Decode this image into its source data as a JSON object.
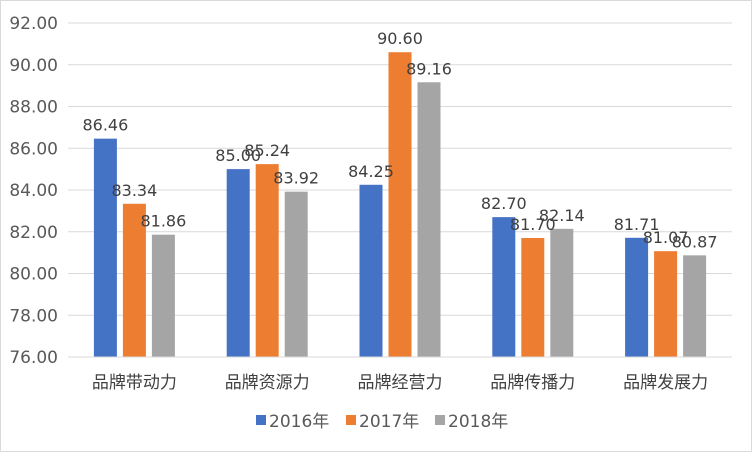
{
  "chart_data": {
    "type": "bar",
    "categories": [
      "品牌带动力",
      "品牌资源力",
      "品牌经营力",
      "品牌传播力",
      "品牌发展力"
    ],
    "series": [
      {
        "name": "2016年",
        "color": "#4472C4",
        "values": [
          86.46,
          85.0,
          84.25,
          82.7,
          81.71
        ]
      },
      {
        "name": "2017年",
        "color": "#ED7D31",
        "values": [
          83.34,
          85.24,
          90.6,
          81.7,
          81.07
        ]
      },
      {
        "name": "2018年",
        "color": "#A5A5A5",
        "values": [
          81.86,
          83.92,
          89.16,
          82.14,
          80.87
        ]
      }
    ],
    "ylim": [
      76,
      92
    ],
    "yticks": [
      "76.00",
      "78.00",
      "80.00",
      "82.00",
      "84.00",
      "86.00",
      "88.00",
      "90.00",
      "92.00"
    ],
    "grid": true,
    "legend": "bottom",
    "data_labels": true,
    "title": "",
    "xlabel": "",
    "ylabel": ""
  }
}
